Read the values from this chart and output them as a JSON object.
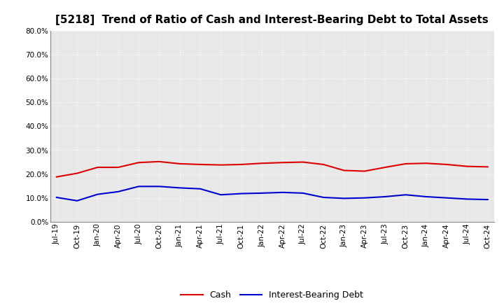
{
  "title": "[5218]  Trend of Ratio of Cash and Interest-Bearing Debt to Total Assets",
  "x_labels": [
    "Jul-19",
    "Oct-19",
    "Jan-20",
    "Apr-20",
    "Jul-20",
    "Oct-20",
    "Jan-21",
    "Apr-21",
    "Jul-21",
    "Oct-21",
    "Jan-22",
    "Apr-22",
    "Jul-22",
    "Oct-22",
    "Jan-23",
    "Apr-23",
    "Jul-23",
    "Oct-23",
    "Jan-24",
    "Apr-24",
    "Jul-24",
    "Oct-24"
  ],
  "cash": [
    0.188,
    0.203,
    0.228,
    0.228,
    0.248,
    0.252,
    0.243,
    0.24,
    0.238,
    0.24,
    0.245,
    0.248,
    0.25,
    0.24,
    0.215,
    0.212,
    0.228,
    0.243,
    0.245,
    0.24,
    0.232,
    0.23
  ],
  "debt": [
    0.102,
    0.088,
    0.115,
    0.126,
    0.148,
    0.148,
    0.142,
    0.138,
    0.113,
    0.118,
    0.12,
    0.123,
    0.12,
    0.102,
    0.098,
    0.1,
    0.105,
    0.113,
    0.105,
    0.1,
    0.095,
    0.093
  ],
  "cash_color": "#dd0000",
  "debt_color": "#0000cc",
  "ylim": [
    0.0,
    0.8
  ],
  "yticks": [
    0.0,
    0.1,
    0.2,
    0.3,
    0.4,
    0.5,
    0.6,
    0.7,
    0.8
  ],
  "background_color": "#ffffff",
  "plot_bg_color": "#e8e8e8",
  "grid_color": "#ffffff",
  "legend_cash": "Cash",
  "legend_debt": "Interest-Bearing Debt",
  "line_width": 1.5,
  "title_fontsize": 11,
  "tick_fontsize": 7.5
}
